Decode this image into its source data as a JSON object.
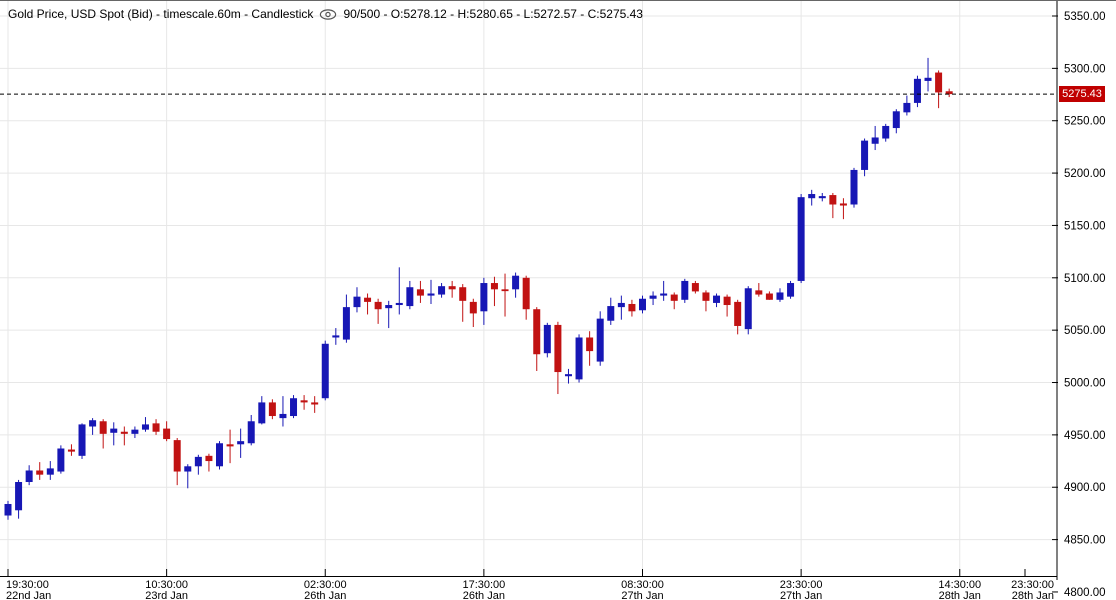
{
  "header": {
    "title_left": "Gold Price, USD Spot (Bid) - timescale.60m - Candlestick",
    "title_right": "90/500 - O:5278.12 - H:5280.65 - L:5272.57 - C:5275.43",
    "instrument": "Gold Price, USD Spot (Bid)",
    "timescale": "60m",
    "chart_type": "Candlestick",
    "visible_counter": "90/500",
    "ohlc_readout": {
      "open": 5278.12,
      "high": 5280.65,
      "low": 5272.57,
      "close": 5275.43
    }
  },
  "price_axis": {
    "last_price_label": "5275.43",
    "last_price": 5275.43,
    "tick_values": [
      5350,
      5300,
      5250,
      5200,
      5150,
      5100,
      5050,
      5000,
      4950,
      4900,
      4850,
      4800
    ]
  },
  "time_axis": {
    "ticks": [
      {
        "bar": 0,
        "time": "19:30:00",
        "date": "22nd Jan"
      },
      {
        "bar": 15,
        "time": "10:30:00",
        "date": "23rd Jan"
      },
      {
        "bar": 30,
        "time": "02:30:00",
        "date": "26th Jan"
      },
      {
        "bar": 45,
        "time": "17:30:00",
        "date": "26th Jan"
      },
      {
        "bar": 60,
        "time": "08:30:00",
        "date": "27th Jan"
      },
      {
        "bar": 75,
        "time": "23:30:00",
        "date": "27th Jan"
      },
      {
        "bar": 90,
        "time": "14:30:00",
        "date": "28th Jan"
      },
      {
        "bar": 99,
        "time": "23:30:00",
        "date": "28th Jan",
        "pinned": true
      }
    ]
  },
  "colors": {
    "up_candle": "#1717b5",
    "down_candle": "#c11212",
    "grid": "#e7e7e7",
    "axis": "#000000",
    "last_price_line": "#000000",
    "badge_bg": "#c00000",
    "badge_text": "#ffffff",
    "background": "#ffffff",
    "title_text": "#000000"
  },
  "chart_data": {
    "type": "candlestick",
    "title": "Gold Price, USD Spot (Bid)",
    "timescale": "60m",
    "visible_range": "90/500",
    "grid": true,
    "y_axis_side": "right",
    "ylim": [
      4815,
      5364
    ],
    "bars_visible": 90,
    "last_bar": {
      "open": 5278.12,
      "high": 5280.65,
      "low": 5272.57,
      "close": 5275.43
    },
    "ohlc": [
      [
        4873,
        4887,
        4869,
        4884
      ],
      [
        4878,
        4907,
        4870,
        4905
      ],
      [
        4905,
        4921,
        4902,
        4916
      ],
      [
        4916,
        4924,
        4907,
        4912
      ],
      [
        4912,
        4925,
        4907,
        4918
      ],
      [
        4915,
        4940,
        4913,
        4937
      ],
      [
        4936,
        4941,
        4930,
        4934
      ],
      [
        4930,
        4961,
        4927,
        4960
      ],
      [
        4958,
        4966,
        4950,
        4964
      ],
      [
        4963,
        4965,
        4937,
        4951
      ],
      [
        4952,
        4962,
        4940,
        4956
      ],
      [
        4953,
        4958,
        4940,
        4951
      ],
      [
        4951,
        4958,
        4947,
        4955
      ],
      [
        4955,
        4967,
        4953,
        4960
      ],
      [
        4961,
        4965,
        4950,
        4953
      ],
      [
        4956,
        4963,
        4944,
        4946
      ],
      [
        4945,
        4947,
        4902,
        4915
      ],
      [
        4915,
        4922,
        4899,
        4920
      ],
      [
        4920,
        4931,
        4912,
        4929
      ],
      [
        4930,
        4932,
        4915,
        4925
      ],
      [
        4920,
        4944,
        4917,
        4942
      ],
      [
        4941,
        4955,
        4923,
        4939
      ],
      [
        4941,
        4956,
        4928,
        4944
      ],
      [
        4942,
        4969,
        4940,
        4963
      ],
      [
        4961,
        4987,
        4960,
        4981
      ],
      [
        4981,
        4984,
        4965,
        4968
      ],
      [
        4966,
        4987,
        4958,
        4970
      ],
      [
        4968,
        4988,
        4966,
        4985
      ],
      [
        4983,
        4988,
        4974,
        4981
      ],
      [
        4981,
        4987,
        4971,
        4979
      ],
      [
        4985,
        5040,
        4983,
        5037
      ],
      [
        5043,
        5052,
        5036,
        5045
      ],
      [
        5041,
        5084,
        5038,
        5072
      ],
      [
        5072,
        5091,
        5067,
        5082
      ],
      [
        5081,
        5085,
        5065,
        5077
      ],
      [
        5077,
        5080,
        5056,
        5070
      ],
      [
        5071,
        5078,
        5052,
        5074
      ],
      [
        5074,
        5110,
        5065,
        5076
      ],
      [
        5073,
        5097,
        5070,
        5091
      ],
      [
        5089,
        5097,
        5076,
        5083
      ],
      [
        5083,
        5098,
        5075,
        5085
      ],
      [
        5084,
        5095,
        5081,
        5092
      ],
      [
        5092,
        5097,
        5081,
        5089
      ],
      [
        5091,
        5094,
        5058,
        5078
      ],
      [
        5077,
        5080,
        5053,
        5066
      ],
      [
        5068,
        5100,
        5055,
        5095
      ],
      [
        5095,
        5101,
        5073,
        5089
      ],
      [
        5089,
        5104,
        5063,
        5088
      ],
      [
        5089,
        5105,
        5081,
        5102
      ],
      [
        5100,
        5102,
        5060,
        5070
      ],
      [
        5070,
        5072,
        5011,
        5027
      ],
      [
        5028,
        5057,
        5024,
        5055
      ],
      [
        5055,
        5058,
        4989,
        5010
      ],
      [
        5006,
        5013,
        4999,
        5008
      ],
      [
        5003,
        5046,
        5000,
        5043
      ],
      [
        5043,
        5049,
        5016,
        5030
      ],
      [
        5020,
        5068,
        5016,
        5061
      ],
      [
        5059,
        5081,
        5055,
        5073
      ],
      [
        5072,
        5083,
        5060,
        5076
      ],
      [
        5075,
        5079,
        5063,
        5068
      ],
      [
        5069,
        5083,
        5066,
        5080
      ],
      [
        5080,
        5087,
        5074,
        5083
      ],
      [
        5083,
        5097,
        5078,
        5085
      ],
      [
        5084,
        5086,
        5070,
        5078
      ],
      [
        5079,
        5099,
        5076,
        5097
      ],
      [
        5095,
        5097,
        5085,
        5087
      ],
      [
        5086,
        5088,
        5068,
        5078
      ],
      [
        5076,
        5085,
        5072,
        5083
      ],
      [
        5082,
        5084,
        5063,
        5074
      ],
      [
        5077,
        5079,
        5046,
        5054
      ],
      [
        5051,
        5092,
        5046,
        5090
      ],
      [
        5088,
        5095,
        5082,
        5084
      ],
      [
        5085,
        5087,
        5079,
        5079
      ],
      [
        5079,
        5090,
        5077,
        5086
      ],
      [
        5082,
        5097,
        5080,
        5095
      ],
      [
        5097,
        5180,
        5095,
        5177
      ],
      [
        5176,
        5184,
        5169,
        5180
      ],
      [
        5176,
        5181,
        5173,
        5178
      ],
      [
        5179,
        5181,
        5157,
        5170
      ],
      [
        5171,
        5176,
        5156,
        5169
      ],
      [
        5170,
        5205,
        5167,
        5203
      ],
      [
        5203,
        5233,
        5197,
        5231
      ],
      [
        5228,
        5245,
        5222,
        5234
      ],
      [
        5233,
        5247,
        5230,
        5245
      ],
      [
        5243,
        5261,
        5238,
        5259
      ],
      [
        5258,
        5274,
        5255,
        5267
      ],
      [
        5267,
        5293,
        5263,
        5290
      ],
      [
        5288,
        5310,
        5278,
        5291
      ],
      [
        5296,
        5298,
        5262,
        5277
      ],
      [
        5278.12,
        5280.65,
        5272.57,
        5275.43
      ]
    ]
  }
}
